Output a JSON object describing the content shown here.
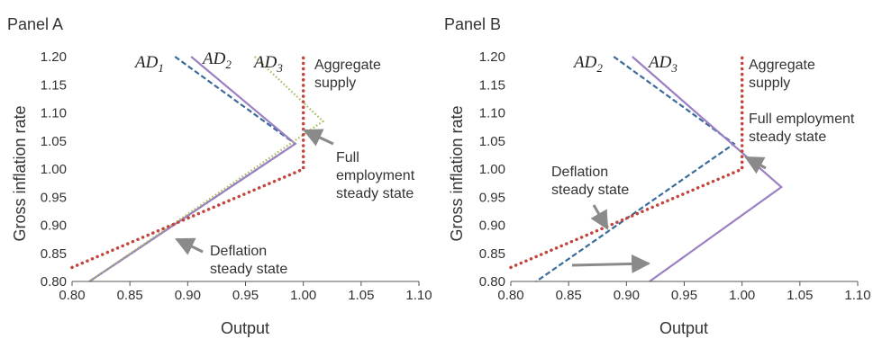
{
  "chart_data": [
    {
      "type": "line",
      "title": "Panel A",
      "xlabel": "Output",
      "ylabel": "Gross inflation rate",
      "xlim": [
        0.8,
        1.1
      ],
      "ylim": [
        0.8,
        1.2
      ],
      "xticks": [
        "0.80",
        "0.85",
        "0.90",
        "0.95",
        "1.00",
        "1.05",
        "1.10"
      ],
      "yticks": [
        "0.80",
        "0.85",
        "0.90",
        "0.95",
        "1.00",
        "1.05",
        "1.10",
        "1.15",
        "1.20"
      ],
      "series": [
        {
          "name": "AD1",
          "name_main": "AD",
          "name_sub": "1",
          "style": "dashed",
          "color": "#3a6b9a",
          "x": [
            0.889,
            0.993,
            0.815
          ],
          "y": [
            1.2,
            1.045,
            0.8
          ]
        },
        {
          "name": "AD2",
          "name_main": "AD",
          "name_sub": "2",
          "style": "solid",
          "color": "#9b80c2",
          "x": [
            0.903,
            0.993,
            0.815
          ],
          "y": [
            1.2,
            1.045,
            0.8
          ]
        },
        {
          "name": "AD3",
          "name_main": "AD",
          "name_sub": "3",
          "style": "dotted-fine",
          "color": "#a8b85a",
          "x": [
            0.958,
            1.017,
            0.815
          ],
          "y": [
            1.2,
            1.085,
            0.8
          ]
        },
        {
          "name": "Aggregate supply",
          "style": "dotted",
          "color": "#c2443d",
          "x": [
            0.8,
            1.0,
            1.0
          ],
          "y": [
            0.825,
            1.0,
            1.2
          ]
        }
      ],
      "series_labels": {
        "AD1": [
          0.88,
          1.195
        ],
        "AD2": [
          0.93,
          1.195
        ],
        "AD3": [
          0.97,
          1.195
        ]
      },
      "annotations": [
        {
          "lines": [
            "Aggregate",
            "supply"
          ]
        },
        {
          "lines": [
            "Full",
            "employment",
            "steady state"
          ]
        },
        {
          "lines": [
            "Deflation",
            "steady state"
          ]
        }
      ]
    },
    {
      "type": "line",
      "title": "Panel B",
      "xlabel": "Output",
      "ylabel": "Gross inflation rate",
      "xlim": [
        0.8,
        1.1
      ],
      "ylim": [
        0.8,
        1.2
      ],
      "xticks": [
        "0.80",
        "0.85",
        "0.90",
        "0.95",
        "1.00",
        "1.05",
        "1.10"
      ],
      "yticks": [
        "0.80",
        "0.85",
        "0.90",
        "0.95",
        "1.00",
        "1.05",
        "1.10",
        "1.15",
        "1.20"
      ],
      "series": [
        {
          "name": "AD2",
          "name_main": "AD",
          "name_sub": "2",
          "style": "dashed",
          "color": "#3a6b9a",
          "x": [
            0.889,
            0.993,
            0.822
          ],
          "y": [
            1.2,
            1.045,
            0.8
          ]
        },
        {
          "name": "AD3",
          "name_main": "AD",
          "name_sub": "3",
          "style": "solid",
          "color": "#9b80c2",
          "x": [
            0.905,
            1.034,
            0.92
          ],
          "y": [
            1.2,
            0.968,
            0.8
          ]
        },
        {
          "name": "Aggregate supply",
          "style": "dotted",
          "color": "#c2443d",
          "x": [
            0.8,
            1.0,
            1.0
          ],
          "y": [
            0.825,
            1.0,
            1.2
          ]
        }
      ],
      "series_labels": {
        "AD2": [
          0.887,
          1.195
        ],
        "AD3": [
          0.935,
          1.195
        ]
      },
      "annotations": [
        {
          "lines": [
            "Aggregate",
            "supply"
          ]
        },
        {
          "lines": [
            "Full employment",
            "steady state"
          ]
        },
        {
          "lines": [
            "Deflation",
            "steady state"
          ]
        }
      ]
    }
  ]
}
